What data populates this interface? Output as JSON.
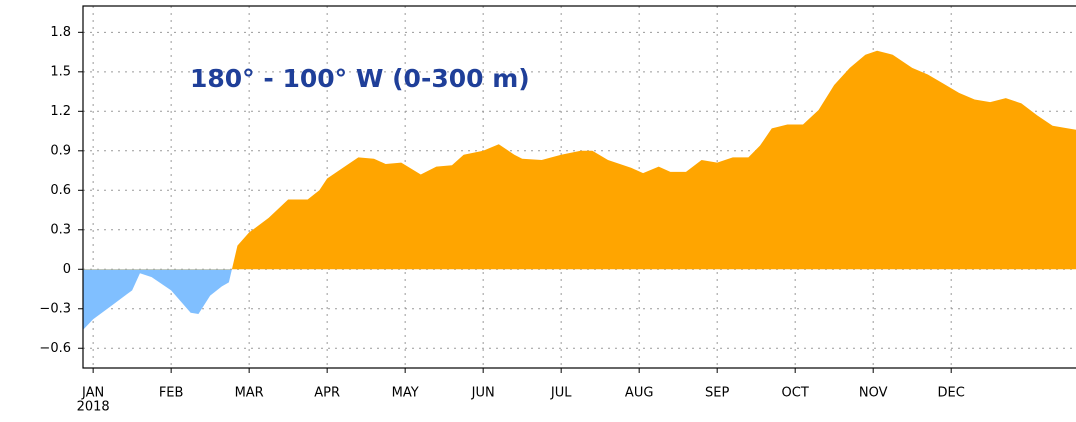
{
  "chart_data": {
    "type": "area",
    "title": "180° - 100° W (0-300 m)",
    "year_label": "2018",
    "positive_color": "#ffa500",
    "negative_color": "#80bfff",
    "title_color": "#1f3f99",
    "grid": true,
    "xlim": [
      -0.13,
      12.6
    ],
    "ylim": [
      -0.75,
      2.0
    ],
    "xticks": [
      {
        "value": 0,
        "label": "JAN"
      },
      {
        "value": 1,
        "label": "FEB"
      },
      {
        "value": 2,
        "label": "MAR"
      },
      {
        "value": 3,
        "label": "APR"
      },
      {
        "value": 4,
        "label": "MAY"
      },
      {
        "value": 5,
        "label": "JUN"
      },
      {
        "value": 6,
        "label": "JUL"
      },
      {
        "value": 7,
        "label": "AUG"
      },
      {
        "value": 8,
        "label": "SEP"
      },
      {
        "value": 9,
        "label": "OCT"
      },
      {
        "value": 10,
        "label": "NOV"
      },
      {
        "value": 11,
        "label": "DEC"
      }
    ],
    "yticks": [
      1.8,
      1.5,
      1.2,
      0.9,
      0.6,
      0.3,
      0,
      {
        "value": -0.3,
        "label": "−0.3"
      },
      {
        "value": -0.6,
        "label": "−0.6"
      }
    ],
    "x": [
      -0.13,
      0,
      0.25,
      0.5,
      0.6,
      0.75,
      1.0,
      1.25,
      1.35,
      1.5,
      1.65,
      1.74,
      1.85,
      2.0,
      2.25,
      2.5,
      2.75,
      2.9,
      3.0,
      3.25,
      3.4,
      3.6,
      3.75,
      3.95,
      4.2,
      4.4,
      4.6,
      4.75,
      5.0,
      5.2,
      5.4,
      5.5,
      5.75,
      6.0,
      6.25,
      6.4,
      6.6,
      6.9,
      7.05,
      7.25,
      7.4,
      7.6,
      7.8,
      8.0,
      8.2,
      8.4,
      8.55,
      8.7,
      8.9,
      9.1,
      9.3,
      9.5,
      9.7,
      9.9,
      10.05,
      10.25,
      10.5,
      10.7,
      10.9,
      11.1,
      11.3,
      11.5,
      11.7,
      11.9,
      12.1,
      12.3,
      12.6
    ],
    "values": [
      -0.46,
      -0.38,
      -0.27,
      -0.16,
      -0.03,
      -0.06,
      -0.16,
      -0.33,
      -0.34,
      -0.2,
      -0.13,
      -0.1,
      0.18,
      0.28,
      0.39,
      0.53,
      0.53,
      0.6,
      0.69,
      0.79,
      0.85,
      0.84,
      0.8,
      0.81,
      0.72,
      0.78,
      0.79,
      0.87,
      0.9,
      0.95,
      0.87,
      0.84,
      0.83,
      0.87,
      0.9,
      0.9,
      0.83,
      0.77,
      0.73,
      0.78,
      0.74,
      0.74,
      0.83,
      0.81,
      0.85,
      0.85,
      0.94,
      1.07,
      1.1,
      1.1,
      1.21,
      1.4,
      1.53,
      1.63,
      1.66,
      1.63,
      1.53,
      1.48,
      1.41,
      1.34,
      1.29,
      1.27,
      1.3,
      1.26,
      1.17,
      1.09,
      1.06
    ]
  }
}
